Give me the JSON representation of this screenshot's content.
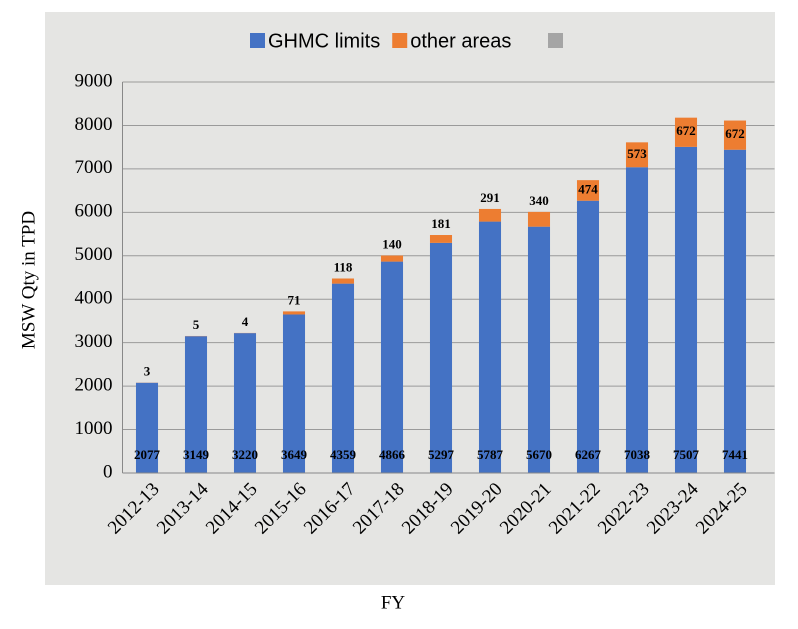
{
  "chart_data": {
    "type": "stacked_bar",
    "x_label": "FY",
    "y_label": "MSW Qty in TPD",
    "categories": [
      "2012-13",
      "2013-14",
      "2014-15",
      "2015-16",
      "2016-17",
      "2017-18",
      "2018-19",
      "2019-20",
      "2020-21",
      "2021-22",
      "2022-23",
      "2023-24",
      "2024-25"
    ],
    "series": [
      {
        "name": "GHMC limits",
        "color": "#4472c4",
        "values": [
          2077,
          3149,
          3220,
          3649,
          4359,
          4866,
          5297,
          5787,
          5670,
          6267,
          7038,
          7507,
          7441
        ]
      },
      {
        "name": "other areas",
        "color": "#ed7d31",
        "values": [
          3,
          5,
          4,
          71,
          118,
          140,
          181,
          291,
          340,
          474,
          573,
          672,
          672
        ]
      }
    ],
    "ylim": [
      0,
      9000
    ],
    "yticks": [
      0,
      1000,
      2000,
      3000,
      4000,
      5000,
      6000,
      7000,
      8000,
      9000
    ],
    "grid": true,
    "legend": "top"
  }
}
